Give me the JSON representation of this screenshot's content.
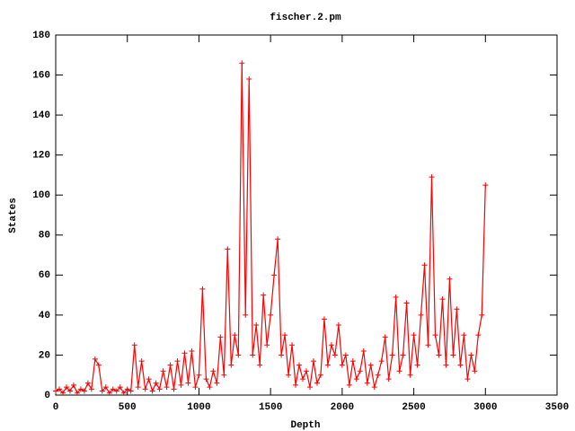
{
  "chart_data": {
    "type": "linespoints",
    "title": "fischer.2.pm",
    "xlabel": "Depth",
    "ylabel": "States",
    "color": "#ff0000",
    "x": [
      0,
      25,
      50,
      75,
      100,
      125,
      150,
      175,
      200,
      225,
      250,
      275,
      300,
      325,
      350,
      375,
      400,
      425,
      450,
      475,
      500,
      525,
      550,
      575,
      600,
      625,
      650,
      675,
      700,
      725,
      750,
      775,
      800,
      825,
      850,
      875,
      900,
      925,
      950,
      975,
      1000,
      1025,
      1050,
      1075,
      1100,
      1125,
      1150,
      1175,
      1200,
      1225,
      1250,
      1275,
      1300,
      1325,
      1350,
      1375,
      1400,
      1425,
      1450,
      1475,
      1500,
      1525,
      1550,
      1575,
      1600,
      1625,
      1650,
      1675,
      1700,
      1725,
      1750,
      1775,
      1800,
      1825,
      1850,
      1875,
      1900,
      1925,
      1950,
      1975,
      2000,
      2025,
      2050,
      2075,
      2100,
      2125,
      2150,
      2175,
      2200,
      2225,
      2250,
      2275,
      2300,
      2325,
      2350,
      2375,
      2400,
      2425,
      2450,
      2475,
      2500,
      2525,
      2550,
      2575,
      2600,
      2625,
      2650,
      2675,
      2700,
      2725,
      2750,
      2775,
      2800,
      2825,
      2850,
      2875,
      2900,
      2925,
      2950,
      2975,
      3000
    ],
    "values": [
      2,
      3,
      1,
      4,
      2,
      5,
      1,
      3,
      2,
      6,
      3,
      18,
      15,
      2,
      4,
      1,
      3,
      2,
      4,
      1,
      3,
      2,
      25,
      4,
      17,
      3,
      8,
      2,
      6,
      3,
      12,
      4,
      15,
      3,
      17,
      5,
      21,
      6,
      22,
      4,
      10,
      53,
      8,
      4,
      12,
      6,
      29,
      10,
      73,
      15,
      30,
      20,
      166,
      40,
      158,
      20,
      35,
      15,
      50,
      25,
      40,
      60,
      78,
      20,
      30,
      10,
      25,
      5,
      15,
      8,
      12,
      4,
      17,
      6,
      10,
      38,
      15,
      25,
      20,
      35,
      15,
      20,
      5,
      17,
      8,
      12,
      22,
      6,
      15,
      4,
      10,
      17,
      29,
      8,
      20,
      49,
      12,
      20,
      46,
      10,
      30,
      15,
      40,
      65,
      25,
      109,
      30,
      20,
      48,
      15,
      58,
      20,
      43,
      15,
      30,
      8,
      20,
      12,
      30,
      40,
      105
    ],
    "xlim": [
      0,
      3500
    ],
    "xticks": [
      0,
      500,
      1000,
      1500,
      2000,
      2500,
      3000,
      3500
    ],
    "ylim": [
      0,
      180
    ],
    "yticks": [
      0,
      20,
      40,
      60,
      80,
      100,
      120,
      140,
      160,
      180
    ]
  }
}
